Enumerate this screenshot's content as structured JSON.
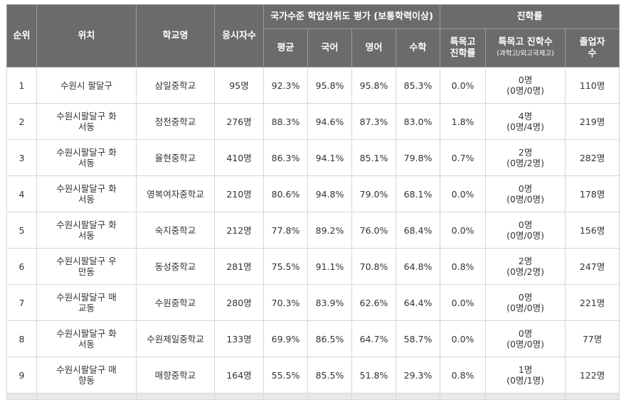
{
  "headers": {
    "rank": "순위",
    "location": "위치",
    "school": "학교명",
    "test_takers": "응시자수",
    "national_group": "국가수준 학업성취도 평가 (보통학력이상)",
    "avg": "평균",
    "korean": "국어",
    "english": "영어",
    "math": "수학",
    "advance_group": "진학률",
    "special_rate_l1": "특목고",
    "special_rate_l2": "진학률",
    "special_count": "특목고 진학수",
    "special_count_sub": "(과학고/외고국제고)",
    "graduates_l1": "졸업자",
    "graduates_l2": "수"
  },
  "rows": [
    {
      "rank": "1",
      "loc1": "수원시 팔달구",
      "loc2": "",
      "school": "삼일중학교",
      "takers": "95명",
      "avg": "92.3%",
      "kor": "95.8%",
      "eng": "95.8%",
      "math": "85.3%",
      "rate": "0.0%",
      "count1": "0명",
      "count2": "(0명/0명)",
      "grads": "110명"
    },
    {
      "rank": "2",
      "loc1": "수원시팔달구 화",
      "loc2": "서동",
      "school": "정천중학교",
      "takers": "276명",
      "avg": "88.3%",
      "kor": "94.6%",
      "eng": "87.3%",
      "math": "83.0%",
      "rate": "1.8%",
      "count1": "4명",
      "count2": "(0명/4명)",
      "grads": "219명"
    },
    {
      "rank": "3",
      "loc1": "수원시팔달구 화",
      "loc2": "서동",
      "school": "율현중학교",
      "takers": "410명",
      "avg": "86.3%",
      "kor": "94.1%",
      "eng": "85.1%",
      "math": "79.8%",
      "rate": "0.7%",
      "count1": "2명",
      "count2": "(0명/2명)",
      "grads": "282명"
    },
    {
      "rank": "4",
      "loc1": "수원시팔달구 화",
      "loc2": "서동",
      "school": "영복여자중학교",
      "takers": "210명",
      "avg": "80.6%",
      "kor": "94.8%",
      "eng": "79.0%",
      "math": "68.1%",
      "rate": "0.0%",
      "count1": "0명",
      "count2": "(0명/0명)",
      "grads": "178명"
    },
    {
      "rank": "5",
      "loc1": "수원시팔달구 화",
      "loc2": "서동",
      "school": "숙지중학교",
      "takers": "212명",
      "avg": "77.8%",
      "kor": "89.2%",
      "eng": "76.0%",
      "math": "68.4%",
      "rate": "0.0%",
      "count1": "0명",
      "count2": "(0명/0명)",
      "grads": "156명"
    },
    {
      "rank": "6",
      "loc1": "수원시팔달구 우",
      "loc2": "만동",
      "school": "동성중학교",
      "takers": "281명",
      "avg": "75.5%",
      "kor": "91.1%",
      "eng": "70.8%",
      "math": "64.8%",
      "rate": "0.8%",
      "count1": "2명",
      "count2": "(0명/2명)",
      "grads": "247명"
    },
    {
      "rank": "7",
      "loc1": "수원시팔달구 매",
      "loc2": "교동",
      "school": "수원중학교",
      "takers": "280명",
      "avg": "70.3%",
      "kor": "83.9%",
      "eng": "62.6%",
      "math": "64.4%",
      "rate": "0.0%",
      "count1": "0명",
      "count2": "(0명/0명)",
      "grads": "221명"
    },
    {
      "rank": "8",
      "loc1": "수원시팔달구 화",
      "loc2": "서동",
      "school": "수원제일중학교",
      "takers": "133명",
      "avg": "69.9%",
      "kor": "86.5%",
      "eng": "64.7%",
      "math": "58.7%",
      "rate": "0.0%",
      "count1": "0명",
      "count2": "(0명/0명)",
      "grads": "77명"
    },
    {
      "rank": "9",
      "loc1": "수원시팔달구 매",
      "loc2": "향동",
      "school": "매향중학교",
      "takers": "164명",
      "avg": "55.5%",
      "kor": "85.5%",
      "eng": "51.8%",
      "math": "29.3%",
      "rate": "0.8%",
      "count1": "1명",
      "count2": "(0명/1명)",
      "grads": "122명"
    }
  ]
}
